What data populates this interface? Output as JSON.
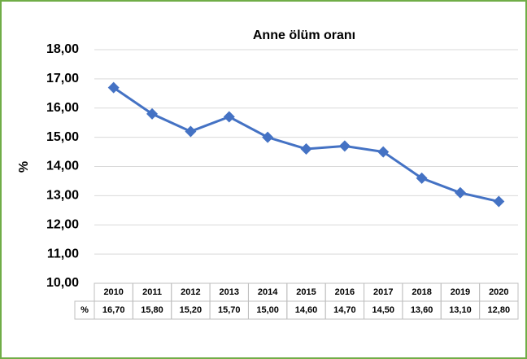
{
  "chart_data": {
    "type": "line",
    "title": "Anne ölüm oranı",
    "y_label": "%",
    "categories": [
      "2010",
      "2011",
      "2012",
      "2013",
      "2014",
      "2015",
      "2016",
      "2017",
      "2018",
      "2019",
      "2020"
    ],
    "series": [
      {
        "name": "%",
        "color": "#4472c4",
        "values": [
          16.7,
          15.8,
          15.2,
          15.7,
          15.0,
          14.6,
          14.7,
          14.5,
          13.6,
          13.1,
          12.8
        ],
        "value_labels": [
          "16,70",
          "15,80",
          "15,20",
          "15,70",
          "15,00",
          "14,60",
          "14,70",
          "14,50",
          "13,60",
          "13,10",
          "12,80"
        ]
      }
    ],
    "ylim": [
      10,
      18
    ],
    "yticks": [
      {
        "value": 10,
        "label": "10,00"
      },
      {
        "value": 11,
        "label": "11,00"
      },
      {
        "value": 12,
        "label": "12,00"
      },
      {
        "value": 13,
        "label": "13,00"
      },
      {
        "value": 14,
        "label": "14,00"
      },
      {
        "value": 15,
        "label": "15,00"
      },
      {
        "value": 16,
        "label": "16,00"
      },
      {
        "value": 17,
        "label": "17,00"
      },
      {
        "value": 18,
        "label": "18,00"
      }
    ],
    "grid": true,
    "data_table": true
  }
}
